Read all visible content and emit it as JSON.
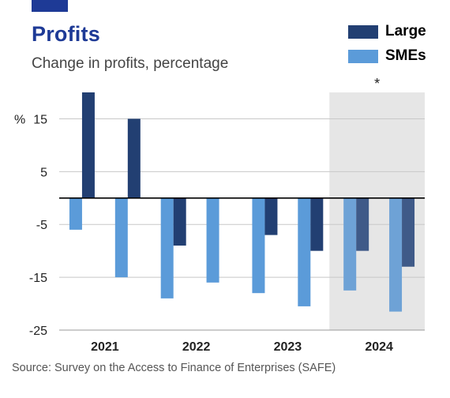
{
  "header": {
    "title": "Profits",
    "subtitle": "Change in profits, percentage"
  },
  "footer": {
    "source": "Source: Survey on the Access to Finance of Enterprises (SAFE)"
  },
  "colors": {
    "brand": "#1e3a96",
    "large": "#223f72",
    "smes": "#5b9bd9",
    "large_shaded": "#3f5a88",
    "smes_shaded": "#6ea2d6",
    "shade": "#e6e6e6",
    "grid": "#c8c8c8"
  },
  "chart_data": {
    "type": "bar",
    "title": "Profits",
    "subtitle": "Change in profits, percentage",
    "y_unit_label": "%",
    "ylim": [
      -25,
      20
    ],
    "yticks": [
      15,
      5,
      -5,
      -15,
      -25
    ],
    "grid": true,
    "legend_position": "top-right",
    "x_labels": [
      "2021",
      "2022",
      "2023",
      "2024"
    ],
    "periods": [
      "2021 H1",
      "2021 H2",
      "2022 H1",
      "2022 H2",
      "2023 H1",
      "2023 H2",
      "2024 H1",
      "2024 H2"
    ],
    "series": [
      {
        "name": "Large",
        "values": [
          20,
          15,
          -9,
          null,
          -7,
          -10,
          -10,
          -13
        ]
      },
      {
        "name": "SMEs",
        "values": [
          -6,
          -15,
          -19,
          -16,
          -18,
          -20.5,
          -17.5,
          -21.5
        ]
      }
    ],
    "shaded_region": {
      "from_period": "2024 H1",
      "to_period": "2024 H2",
      "annotation": "*"
    }
  }
}
